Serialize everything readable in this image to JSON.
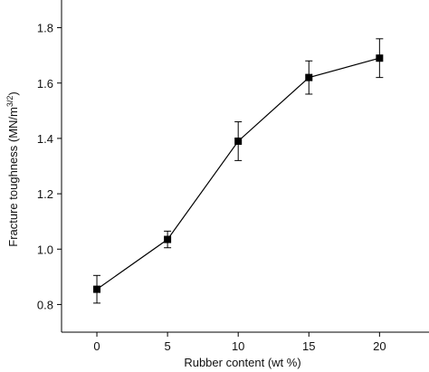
{
  "chart_data": {
    "type": "line",
    "title": "",
    "xlabel": "Rubber content (wt %)",
    "ylabel": {
      "main": "Fracture toughness (MN/m",
      "sup": "3/2",
      "close": ")"
    },
    "xlim": [
      -2.5,
      23.5
    ],
    "ylim": [
      0.7,
      1.9
    ],
    "xticks": [
      0,
      5,
      10,
      15,
      20
    ],
    "yticks": [
      0.8,
      1.0,
      1.2,
      1.4,
      1.6,
      1.8
    ],
    "ytick_labels": [
      "0.8",
      "1.0",
      "1.2",
      "1.4",
      "1.6",
      "1.8"
    ],
    "grid": false,
    "series": [
      {
        "x": [
          0,
          5,
          10,
          15,
          20
        ],
        "y": [
          0.855,
          1.035,
          1.39,
          1.62,
          1.69
        ],
        "error": [
          0.05,
          0.03,
          0.07,
          0.06,
          0.07
        ]
      }
    ],
    "line_color": "#000000"
  }
}
